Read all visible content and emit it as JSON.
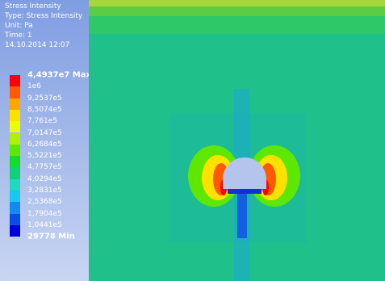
{
  "header": {
    "lines": [
      "Stress Intensity",
      "Type: Stress Intensity",
      "Unit: Pa",
      "Time: 1",
      "14.10.2014 12:07"
    ]
  },
  "legend": {
    "labels": [
      "4,4937e7 Max",
      "1e6",
      "9,2537e5",
      "8,5074e5",
      "7,761e5",
      "7,0147e5",
      "6,2684e5",
      "5,5221e5",
      "4,7757e5",
      "4,0294e5",
      "3,2831e5",
      "2,5368e5",
      "1,7904e5",
      "1,0441e5",
      "29778 Min"
    ],
    "colors": [
      "#ff0000",
      "#ff5a00",
      "#ffa600",
      "#ffe100",
      "#e8ff00",
      "#aef200",
      "#5ee800",
      "#14dc2c",
      "#10d07c",
      "#1ed8c4",
      "#18c8f0",
      "#108cf0",
      "#0a4ce6",
      "#0000d8"
    ]
  }
}
